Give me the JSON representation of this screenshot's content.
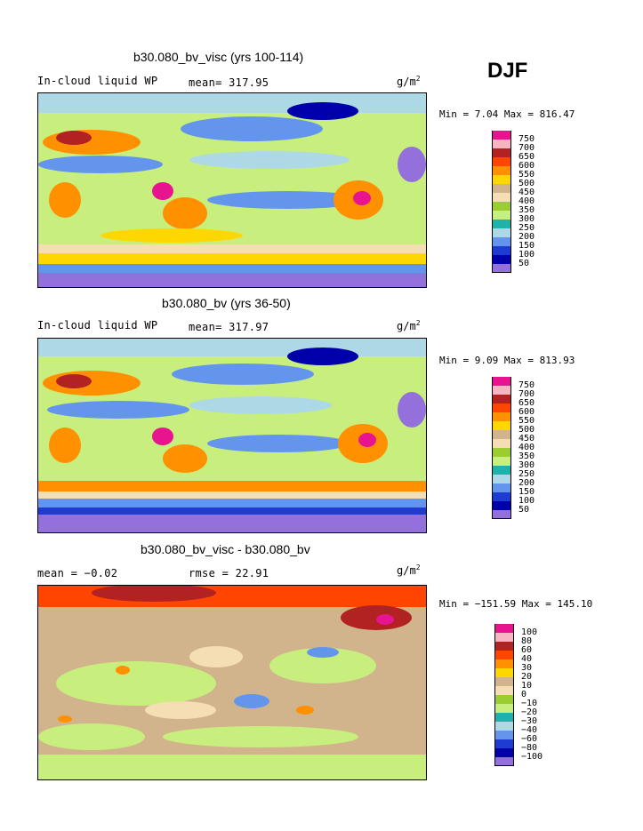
{
  "season": "DJF",
  "panels": [
    {
      "title": "b30.080_bv_visc (yrs 100-114)",
      "left_text": "In-cloud liquid WP",
      "center_text": "mean= 317.95",
      "units_base": "g/m",
      "units_exp": "2",
      "minmax": "Min =   7.04 Max = 816.47",
      "levels": [
        "750",
        "700",
        "650",
        "600",
        "550",
        "500",
        "450",
        "400",
        "350",
        "300",
        "250",
        "200",
        "150",
        "100",
        "50"
      ],
      "colors": [
        "#e8138f",
        "#f8b4c0",
        "#b22222",
        "#ff4500",
        "#ff9100",
        "#ffd700",
        "#d2b48c",
        "#f5deb3",
        "#9acd32",
        "#c8ef7d",
        "#20b2aa",
        "#add8e6",
        "#6495ed",
        "#1e3cd2",
        "#0000aa",
        "#9370db"
      ]
    },
    {
      "title": "b30.080_bv (yrs 36-50)",
      "left_text": "In-cloud liquid WP",
      "center_text": "mean= 317.97",
      "units_base": "g/m",
      "units_exp": "2",
      "minmax": "Min =   9.09 Max = 813.93",
      "levels": [
        "750",
        "700",
        "650",
        "600",
        "550",
        "500",
        "450",
        "400",
        "350",
        "300",
        "250",
        "200",
        "150",
        "100",
        "50"
      ],
      "colors": [
        "#e8138f",
        "#f8b4c0",
        "#b22222",
        "#ff4500",
        "#ff9100",
        "#ffd700",
        "#d2b48c",
        "#f5deb3",
        "#9acd32",
        "#c8ef7d",
        "#20b2aa",
        "#add8e6",
        "#6495ed",
        "#1e3cd2",
        "#0000aa",
        "#9370db"
      ]
    },
    {
      "title": "b30.080_bv_visc - b30.080_bv",
      "left_text": "mean =  −0.02",
      "center_text": "rmse =  22.91",
      "units_base": "g/m",
      "units_exp": "2",
      "minmax": "Min = −151.59 Max = 145.10",
      "levels": [
        "100",
        "80",
        "60",
        "40",
        "30",
        "20",
        "10",
        "0",
        "−10",
        "−20",
        "−30",
        "−40",
        "−60",
        "−80",
        "−100"
      ],
      "colors": [
        "#e8138f",
        "#f8b4c0",
        "#b22222",
        "#ff4500",
        "#ff9100",
        "#ffd700",
        "#d2b48c",
        "#f5deb3",
        "#9acd32",
        "#c8ef7d",
        "#20b2aa",
        "#add8e6",
        "#6495ed",
        "#1e3cd2",
        "#0000aa",
        "#9370db"
      ]
    }
  ]
}
